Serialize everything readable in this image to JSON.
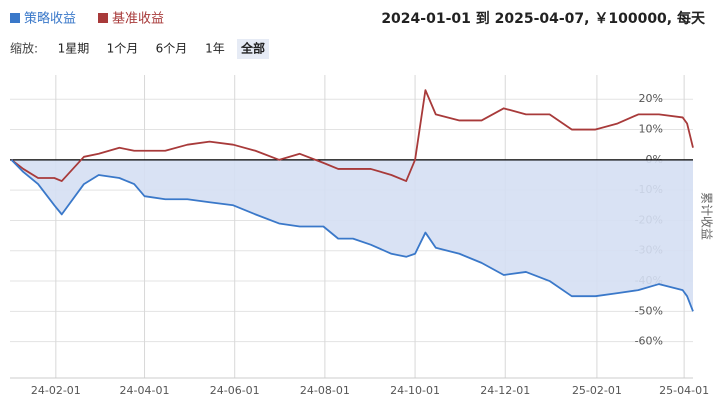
{
  "chart_data": {
    "type": "line",
    "header": {
      "range_text": "2024-01-01 到 2025-04-07, ￥100000, 每天",
      "zoom_label": "缩放:",
      "zoom_options": [
        "1星期",
        "1个月",
        "6个月",
        "1年",
        "全部"
      ],
      "zoom_selected": 4
    },
    "y_axis_title": "累计收益",
    "y_axis_side": "right",
    "x": [
      "2024-01-02",
      "2024-01-10",
      "2024-01-20",
      "2024-01-31",
      "2024-02-05",
      "2024-02-20",
      "2024-03-01",
      "2024-03-15",
      "2024-03-25",
      "2024-04-01",
      "2024-04-15",
      "2024-04-30",
      "2024-05-15",
      "2024-05-31",
      "2024-06-15",
      "2024-07-01",
      "2024-07-15",
      "2024-07-31",
      "2024-08-10",
      "2024-08-20",
      "2024-09-01",
      "2024-09-15",
      "2024-09-25",
      "2024-10-01",
      "2024-10-08",
      "2024-10-15",
      "2024-10-31",
      "2024-11-15",
      "2024-11-30",
      "2024-12-15",
      "2024-12-31",
      "2025-01-15",
      "2025-01-31",
      "2025-02-15",
      "2025-03-01",
      "2025-03-15",
      "2025-03-31",
      "2025-04-03",
      "2025-04-07"
    ],
    "series": [
      {
        "name": "策略收益",
        "color": "#3a78c9",
        "fill_color": "#d5dff3",
        "values": [
          0,
          -4,
          -8,
          -15,
          -18,
          -8,
          -5,
          -6,
          -8,
          -12,
          -13,
          -13,
          -14,
          -15,
          -18,
          -21,
          -22,
          -22,
          -26,
          -26,
          -28,
          -31,
          -32,
          -31,
          -24,
          -29,
          -31,
          -34,
          -38,
          -37,
          -40,
          -45,
          -45,
          -44,
          -43,
          -41,
          -43,
          -45,
          -50
        ]
      },
      {
        "name": "基准收益",
        "color": "#a83a3a",
        "values": [
          0,
          -3,
          -6,
          -6,
          -7,
          1,
          2,
          4,
          3,
          3,
          3,
          5,
          6,
          5,
          3,
          0,
          2,
          -1,
          -3,
          -3,
          -3,
          -5,
          -7,
          0,
          23,
          15,
          13,
          13,
          17,
          15,
          15,
          10,
          10,
          12,
          15,
          15,
          14,
          12,
          4
        ]
      }
    ],
    "xlim": [
      "2024-01-01",
      "2025-04-07"
    ],
    "xticks": [
      {
        "value": "2024-02-01",
        "label": "24-02-01"
      },
      {
        "value": "2024-04-01",
        "label": "24-04-01"
      },
      {
        "value": "2024-06-01",
        "label": "24-06-01"
      },
      {
        "value": "2024-08-01",
        "label": "24-08-01"
      },
      {
        "value": "2024-10-01",
        "label": "24-10-01"
      },
      {
        "value": "2024-12-01",
        "label": "24-12-01"
      },
      {
        "value": "2025-02-01",
        "label": "25-02-01"
      },
      {
        "value": "2025-04-01",
        "label": "25-04-01"
      }
    ],
    "ylim": [
      -72,
      28
    ],
    "yticks": [
      {
        "value": 20,
        "label": "20%"
      },
      {
        "value": 10,
        "label": "10%"
      },
      {
        "value": 0,
        "label": "0%"
      },
      {
        "value": -10,
        "label": "-10%"
      },
      {
        "value": -20,
        "label": "-20%"
      },
      {
        "value": -30,
        "label": "-30%"
      },
      {
        "value": -40,
        "label": "-40%"
      },
      {
        "value": -50,
        "label": "-50%"
      },
      {
        "value": -60,
        "label": "-60%"
      }
    ],
    "grid": true
  }
}
